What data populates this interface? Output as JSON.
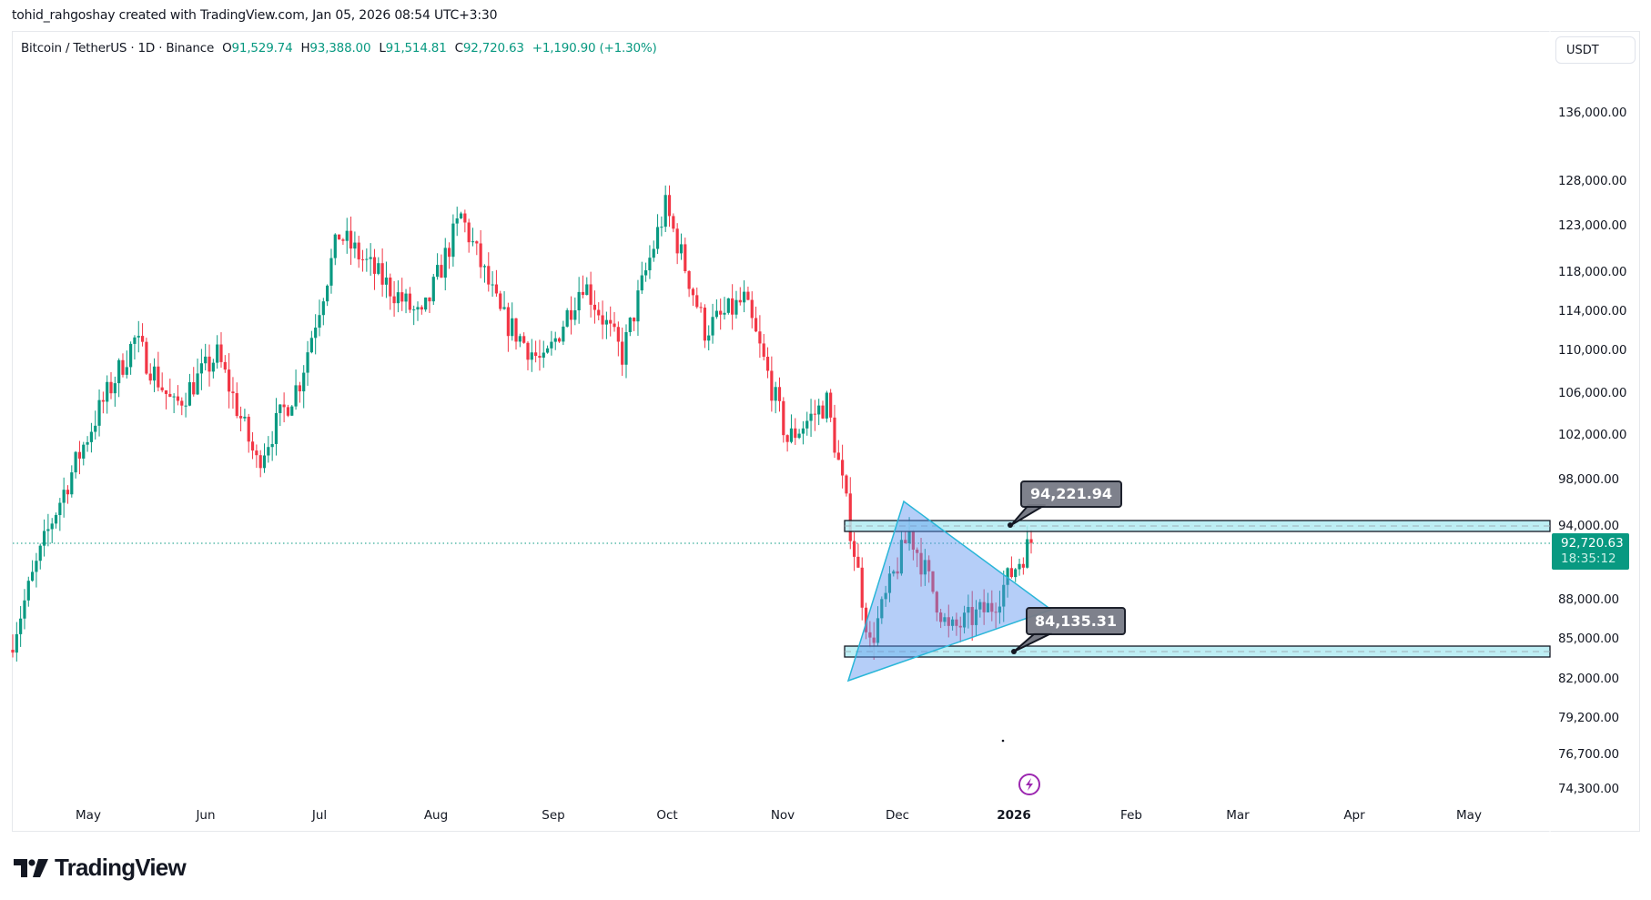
{
  "attribution": "tohid_rahgoshay created with TradingView.com, Jan 05, 2026 08:54 UTC+3:30",
  "legend": {
    "symbol": "Bitcoin / TetherUS · 1D · Binance",
    "open_label": "O",
    "open": "91,529.74",
    "high_label": "H",
    "high": "93,388.00",
    "low_label": "L",
    "low": "91,514.81",
    "close_label": "C",
    "close": "92,720.63",
    "change": "+1,190.90 (+1.30%)"
  },
  "currency_button": "USDT",
  "price_tag": {
    "price": "92,720.63",
    "countdown": "18:35:12",
    "color": "#089981"
  },
  "callouts": {
    "upper": "94,221.94",
    "lower": "84,135.31"
  },
  "logo": {
    "text": "TradingView"
  },
  "icons": {
    "alert": "lightning-alert-icon",
    "logo": "tradingview-logo-icon"
  },
  "colors": {
    "up": "#089981",
    "down": "#f23645",
    "zone_fill": "#b2ebf2",
    "triangle_fill": "#90b8f5",
    "triangle_stroke": "#29b6d8"
  },
  "chart_data": {
    "type": "candlestick",
    "title": "Bitcoin / TetherUS · 1D · Binance",
    "xlabel": "",
    "ylabel": "USDT",
    "y_scale": "log",
    "y_ticks": [
      "136,000.00",
      "128,000.00",
      "123,000.00",
      "118,000.00",
      "114,000.00",
      "110,000.00",
      "106,000.00",
      "102,000.00",
      "98,000.00",
      "94,000.00",
      "88,000.00",
      "85,000.00",
      "82,000.00",
      "79,200.00",
      "76,700.00",
      "74,300.00"
    ],
    "x_ticks": [
      "May",
      "Jun",
      "Jul",
      "Aug",
      "Sep",
      "Oct",
      "Nov",
      "Dec",
      "2026",
      "Feb",
      "Mar",
      "Apr",
      "May"
    ],
    "ylim": [
      72000,
      140000
    ],
    "last": {
      "open": 91529.74,
      "high": 93388.0,
      "low": 91514.81,
      "close": 92720.63,
      "change": 1190.9,
      "change_pct": 1.3
    },
    "approx_path": [
      {
        "date": "Apr-20",
        "close": 85000
      },
      {
        "date": "May-01",
        "close": 94500
      },
      {
        "date": "May-10",
        "close": 103500
      },
      {
        "date": "May-22",
        "close": 111000
      },
      {
        "date": "Jun-05",
        "close": 104500
      },
      {
        "date": "Jun-10",
        "close": 109500
      },
      {
        "date": "Jun-22",
        "close": 99500
      },
      {
        "date": "Jul-01",
        "close": 107000
      },
      {
        "date": "Jul-14",
        "close": 122000
      },
      {
        "date": "Jul-25",
        "close": 117500
      },
      {
        "date": "Aug-02",
        "close": 113000
      },
      {
        "date": "Aug-14",
        "close": 124000
      },
      {
        "date": "Aug-20",
        "close": 113500
      },
      {
        "date": "Sep-01",
        "close": 108500
      },
      {
        "date": "Sep-18",
        "close": 117000
      },
      {
        "date": "Sep-25",
        "close": 109500
      },
      {
        "date": "Oct-06",
        "close": 125000
      },
      {
        "date": "Oct-10",
        "close": 112000
      },
      {
        "date": "Oct-27",
        "close": 115000
      },
      {
        "date": "Nov-04",
        "close": 101500
      },
      {
        "date": "Nov-11",
        "close": 105000
      },
      {
        "date": "Nov-21",
        "close": 84500
      },
      {
        "date": "Dec-03",
        "close": 93500
      },
      {
        "date": "Dec-18",
        "close": 85500
      },
      {
        "date": "Dec-31",
        "close": 87500
      },
      {
        "date": "Jan-05",
        "close": 92720.63
      }
    ],
    "annotations": [
      {
        "type": "horizontal_zone",
        "level": 94221.94,
        "label": "94,221.94"
      },
      {
        "type": "horizontal_zone",
        "level": 84135.31,
        "label": "84,135.31"
      },
      {
        "type": "triangle",
        "pattern": "symmetrical triangle",
        "points": [
          [
            "Nov-21",
            81500
          ],
          [
            "Dec-02",
            96000
          ],
          [
            "Jan-07",
            87000
          ]
        ]
      },
      {
        "type": "price_line",
        "value": 92720.63,
        "label": "92,720.63",
        "countdown": "18:35:12"
      }
    ],
    "grid": false,
    "legend_position": "top-left"
  }
}
